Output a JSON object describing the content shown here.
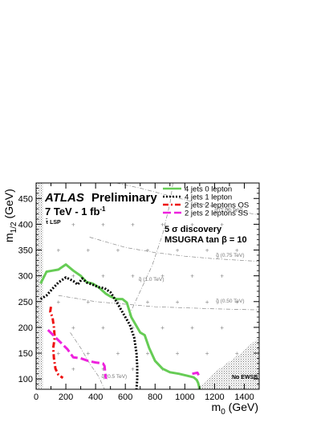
{
  "chart_data": {
    "type": "line",
    "xlabel_main": "m",
    "xlabel_sub": "0",
    "xlabel_unit": " (GeV)",
    "ylabel_main": "m",
    "ylabel_sub": "1/2",
    "ylabel_unit": " (GeV)",
    "xlim": [
      0,
      1500
    ],
    "ylim": [
      80,
      480
    ],
    "xticks": [
      0,
      200,
      400,
      600,
      800,
      1000,
      1200,
      1400
    ],
    "yticks": [
      100,
      150,
      200,
      250,
      300,
      350,
      400,
      450
    ],
    "header": {
      "atlas": "ATLAS",
      "preliminary": "Preliminary",
      "energy": "7 TeV - 1 fb",
      "energy_sup": "-1",
      "lsp": "τ̃ LSP",
      "discovery": "5 σ discovery",
      "msugra": "MSUGRA tan β = 10",
      "no_ewsb": "No EWSB"
    },
    "legend": [
      {
        "label": "4 jets 0 lepton",
        "color": "#66cc55",
        "dash": ""
      },
      {
        "label": "4 jets 1 lepton",
        "color": "#000000",
        "dash": "2,2"
      },
      {
        "label": "2 jets 2 leptons OS",
        "color": "#ee1111",
        "dash": "7,3,2,3"
      },
      {
        "label": "2 jets 2 leptons SS",
        "color": "#ee22dd",
        "dash": "10,4"
      }
    ],
    "series": [
      {
        "name": "4 jets 0 lepton",
        "color": "#66cc55",
        "dash": "",
        "width": 3,
        "points": [
          [
            30,
            285
          ],
          [
            70,
            308
          ],
          [
            110,
            310
          ],
          [
            150,
            312
          ],
          [
            200,
            322
          ],
          [
            250,
            310
          ],
          [
            300,
            300
          ],
          [
            340,
            288
          ],
          [
            380,
            285
          ],
          [
            420,
            278
          ],
          [
            470,
            265
          ],
          [
            500,
            260
          ],
          [
            540,
            255
          ],
          [
            580,
            255
          ],
          [
            610,
            248
          ],
          [
            640,
            220
          ],
          [
            660,
            210
          ],
          [
            700,
            190
          ],
          [
            730,
            185
          ],
          [
            760,
            160
          ],
          [
            800,
            135
          ],
          [
            850,
            120
          ],
          [
            900,
            113
          ],
          [
            960,
            110
          ],
          [
            1020,
            106
          ],
          [
            1060,
            103
          ],
          [
            1080,
            98
          ],
          [
            1090,
            92
          ],
          [
            1100,
            80
          ]
        ]
      },
      {
        "name": "4 jets 1 lepton",
        "color": "#000000",
        "dash": "2,2",
        "width": 3,
        "points": [
          [
            30,
            255
          ],
          [
            70,
            262
          ],
          [
            110,
            275
          ],
          [
            150,
            287
          ],
          [
            200,
            297
          ],
          [
            250,
            290
          ],
          [
            280,
            283
          ],
          [
            310,
            295
          ],
          [
            340,
            287
          ],
          [
            380,
            283
          ],
          [
            420,
            278
          ],
          [
            460,
            276
          ],
          [
            500,
            268
          ],
          [
            540,
            250
          ],
          [
            570,
            235
          ],
          [
            600,
            220
          ],
          [
            630,
            205
          ],
          [
            660,
            180
          ],
          [
            675,
            150
          ],
          [
            680,
            125
          ],
          [
            680,
            100
          ],
          [
            675,
            80
          ]
        ]
      },
      {
        "name": "2 jets 2 leptons OS",
        "color": "#ee1111",
        "dash": "7,3,2,3",
        "width": 3,
        "points": [
          [
            100,
            240
          ],
          [
            95,
            230
          ],
          [
            110,
            220
          ],
          [
            120,
            200
          ],
          [
            125,
            180
          ],
          [
            115,
            160
          ],
          [
            120,
            140
          ],
          [
            130,
            120
          ],
          [
            150,
            108
          ],
          [
            180,
            102
          ]
        ]
      },
      {
        "name": "2 jets 2 leptons SS",
        "color": "#ee22dd",
        "dash": "10,4",
        "width": 3,
        "points": [
          [
            80,
            195
          ],
          [
            150,
            175
          ],
          [
            210,
            158
          ],
          [
            250,
            142
          ],
          [
            300,
            140
          ],
          [
            350,
            135
          ],
          [
            400,
            132
          ],
          [
            450,
            130
          ],
          [
            460,
            125
          ],
          [
            465,
            110
          ],
          [
            470,
            100
          ]
        ]
      },
      {
        "name": "2 jets 2 leptons SS (high m0)",
        "color": "#ee22dd",
        "dash": "10,4",
        "width": 3,
        "points": [
          [
            1050,
            110
          ],
          [
            1085,
            112
          ],
          [
            1100,
            103
          ]
        ]
      }
    ],
    "mass_contours": [
      {
        "label": "g̃ (1.00 TeV)",
        "lx": 1200,
        "ly": 425,
        "points": [
          [
            540,
            480
          ],
          [
            700,
            470
          ],
          [
            900,
            455
          ],
          [
            1100,
            440
          ],
          [
            1300,
            428
          ],
          [
            1500,
            418
          ]
        ]
      },
      {
        "label": "g̃ (0.75 TeV)",
        "lx": 1210,
        "ly": 337,
        "points": [
          [
            360,
            375
          ],
          [
            600,
            355
          ],
          [
            800,
            345
          ],
          [
            1000,
            338
          ],
          [
            1200,
            333
          ],
          [
            1500,
            328
          ]
        ]
      },
      {
        "label": "q̃ (1.0 TeV)",
        "lx": 690,
        "ly": 290,
        "points": [
          [
            920,
            480
          ],
          [
            900,
            440
          ],
          [
            850,
            380
          ],
          [
            780,
            320
          ],
          [
            700,
            270
          ],
          [
            620,
            220
          ]
        ]
      },
      {
        "label": "g̃ (0.50 TeV)",
        "lx": 1210,
        "ly": 248,
        "points": [
          [
            150,
            262
          ],
          [
            400,
            250
          ],
          [
            600,
            245
          ],
          [
            800,
            240
          ],
          [
            1000,
            238
          ],
          [
            1200,
            236
          ],
          [
            1500,
            234
          ]
        ]
      },
      {
        "label": "q̃ (0.5 TeV)",
        "lx": 440,
        "ly": 102,
        "points": [
          [
            230,
            190
          ],
          [
            300,
            160
          ],
          [
            360,
            130
          ],
          [
            420,
            105
          ],
          [
            460,
            80
          ]
        ]
      }
    ],
    "grid_points": [
      [
        250,
        400
      ],
      [
        450,
        400
      ],
      [
        650,
        400
      ],
      [
        850,
        400
      ],
      [
        1050,
        400
      ],
      [
        1250,
        400
      ],
      [
        150,
        350
      ],
      [
        350,
        350
      ],
      [
        550,
        350
      ],
      [
        750,
        350
      ],
      [
        950,
        350
      ],
      [
        1150,
        350
      ],
      [
        1350,
        350
      ],
      [
        250,
        300
      ],
      [
        450,
        300
      ],
      [
        650,
        300
      ],
      [
        850,
        300
      ],
      [
        1050,
        300
      ],
      [
        1250,
        300
      ],
      [
        150,
        250
      ],
      [
        350,
        250
      ],
      [
        550,
        250
      ],
      [
        750,
        250
      ],
      [
        950,
        250
      ],
      [
        1150,
        250
      ],
      [
        1350,
        250
      ],
      [
        250,
        200
      ],
      [
        450,
        200
      ],
      [
        650,
        200
      ],
      [
        850,
        200
      ],
      [
        1050,
        200
      ],
      [
        1250,
        200
      ],
      [
        150,
        150
      ],
      [
        350,
        150
      ],
      [
        550,
        150
      ],
      [
        750,
        150
      ],
      [
        950,
        150
      ],
      [
        1150,
        150
      ],
      [
        1350,
        150
      ],
      [
        250,
        120
      ],
      [
        450,
        120
      ],
      [
        650,
        120
      ],
      [
        850,
        120
      ]
    ]
  }
}
